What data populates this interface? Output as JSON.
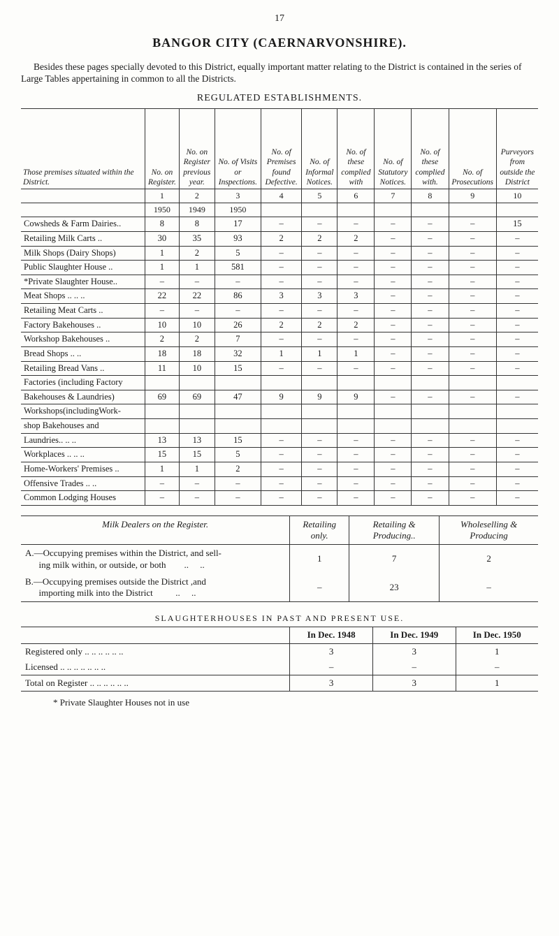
{
  "page_number": "17",
  "title": "BANGOR  CITY  (CAERNARVONSHIRE).",
  "intro": "Besides these pages specially devoted to this District, equally important matter relating to the District is contained in the series of Large Tables appertaining in common to all the Districts.",
  "reg_heading": "REGULATED ESTABLISHMENTS.",
  "columns_rowhead": "Those premises situated within the District.",
  "columns": [
    "No. on Register.",
    "No. on Register previous year.",
    "No. of Visits or Inspections.",
    "No. of Premises found Defective.",
    "No. of Informal Notices.",
    "No. of these complied with",
    "No. of Statutory Notices.",
    "No. of these complied with.",
    "No. of Prosecutions",
    "Purveyors from outside the District"
  ],
  "colnum_row": [
    "1",
    "2",
    "3",
    "4",
    "5",
    "6",
    "7",
    "8",
    "9",
    "10"
  ],
  "year_row": [
    "1950",
    "1949",
    "1950",
    "",
    "",
    "",
    "",
    "",
    "",
    ""
  ],
  "rows": [
    {
      "label": "Cowsheds & Farm Dairies..",
      "c": [
        "8",
        "8",
        "17",
        "–",
        "–",
        "–",
        "–",
        "–",
        "–",
        "15"
      ]
    },
    {
      "label": "Retailing Milk Carts      ..",
      "c": [
        "30",
        "35",
        "93",
        "2",
        "2",
        "2",
        "–",
        "–",
        "–",
        "–"
      ]
    },
    {
      "label": "Milk Shops (Dairy Shops)",
      "c": [
        "1",
        "2",
        "5",
        "–",
        "–",
        "–",
        "–",
        "–",
        "–",
        "–"
      ]
    },
    {
      "label": "Public Slaughter House  ..",
      "c": [
        "1",
        "1",
        "581",
        "–",
        "–",
        "–",
        "–",
        "–",
        "–",
        "–"
      ]
    },
    {
      "label": "*Private Slaughter House..",
      "c": [
        "–",
        "–",
        "–",
        "–",
        "–",
        "–",
        "–",
        "–",
        "–",
        "–"
      ]
    },
    {
      "label": "Meat Shops ..      ..      ..",
      "c": [
        "22",
        "22",
        "86",
        "3",
        "3",
        "3",
        "–",
        "–",
        "–",
        "–"
      ]
    },
    {
      "label": "Retailing Meat Carts     ..",
      "c": [
        "–",
        "–",
        "–",
        "–",
        "–",
        "–",
        "–",
        "–",
        "–",
        "–"
      ]
    },
    {
      "label": "Factory Bakehouses      ..",
      "c": [
        "10",
        "10",
        "26",
        "2",
        "2",
        "2",
        "–",
        "–",
        "–",
        "–"
      ]
    },
    {
      "label": "Workshop Bakehouses   ..",
      "c": [
        "2",
        "2",
        "7",
        "–",
        "–",
        "–",
        "–",
        "–",
        "–",
        "–"
      ]
    },
    {
      "label": "Bread Shops        ..      ..",
      "c": [
        "18",
        "18",
        "32",
        "1",
        "1",
        "1",
        "–",
        "–",
        "–",
        "–"
      ]
    },
    {
      "label": "Retailing Bread Vans    ..",
      "c": [
        "11",
        "10",
        "15",
        "–",
        "–",
        "–",
        "–",
        "–",
        "–",
        "–"
      ]
    },
    {
      "label": "Factories (including Factory",
      "c": [
        "",
        "",
        "",
        "",
        "",
        "",
        "",
        "",
        "",
        ""
      ]
    },
    {
      "label": "  Bakehouses & Laundries)",
      "c": [
        "69",
        "69",
        "47",
        "9",
        "9",
        "9",
        "–",
        "–",
        "–",
        "–"
      ]
    },
    {
      "label": "Workshops(includingWork-",
      "c": [
        "",
        "",
        "",
        "",
        "",
        "",
        "",
        "",
        "",
        ""
      ]
    },
    {
      "label": "  shop Bakehouses and",
      "c": [
        "",
        "",
        "",
        "",
        "",
        "",
        "",
        "",
        "",
        ""
      ]
    },
    {
      "label": "  Laundries..      ..      ..",
      "c": [
        "13",
        "13",
        "15",
        "–",
        "–",
        "–",
        "–",
        "–",
        "–",
        "–"
      ]
    },
    {
      "label": "Workplaces ..      ..      ..",
      "c": [
        "15",
        "15",
        "5",
        "–",
        "–",
        "–",
        "–",
        "–",
        "–",
        "–"
      ]
    },
    {
      "label": "Home-Workers' Premises ..",
      "c": [
        "1",
        "1",
        "2",
        "–",
        "–",
        "–",
        "–",
        "–",
        "–",
        "–"
      ]
    },
    {
      "label": "Offensive Trades   ..      ..",
      "c": [
        "–",
        "–",
        "–",
        "–",
        "–",
        "–",
        "–",
        "–",
        "–",
        "–"
      ]
    },
    {
      "label": "Common Lodging Houses",
      "c": [
        "–",
        "–",
        "–",
        "–",
        "–",
        "–",
        "–",
        "–",
        "–",
        "–"
      ]
    }
  ],
  "milk": {
    "header_left": "Milk Dealers on the Register.",
    "headers": [
      "Retailing only.",
      "Retailing & Producing..",
      "Wholeselling & Producing"
    ],
    "rows": [
      {
        "label": "A.—Occupying premises within the District, and sell-\n      ing milk within, or outside, or both        ..     ..",
        "v": [
          "1",
          "7",
          "2"
        ]
      },
      {
        "label": "B.—Occupying premises outside the District ,and\n      importing milk into the District          ..     ..",
        "v": [
          "–",
          "23",
          "–"
        ]
      }
    ]
  },
  "slaughter_heading": "SLAUGHTERHOUSES IN PAST AND PRESENT USE.",
  "slaughter": {
    "headers": [
      "In Dec. 1948",
      "In Dec. 1949",
      "In Dec. 1950"
    ],
    "rows": [
      {
        "label": "Registered only       ..      ..      ..      ..      ..      ..",
        "v": [
          "3",
          "3",
          "1"
        ]
      },
      {
        "label": "Licensed      ..        ..      ..      ..      ..      ..      ..",
        "v": [
          "–",
          "–",
          "–"
        ]
      }
    ],
    "total": {
      "label": "Total on Register  ..      ..      ..      ..      ..      ..",
      "v": [
        "3",
        "3",
        "1"
      ]
    }
  },
  "footnote": "*   Private Slaughter Houses not in use",
  "colors": {
    "bg": "#fdfdfb",
    "text": "#1a1a1a",
    "rule": "#333333"
  },
  "typography": {
    "body_family": "Times New Roman / Georgia serif",
    "body_size_pt": 10.5,
    "title_size_pt": 14
  }
}
